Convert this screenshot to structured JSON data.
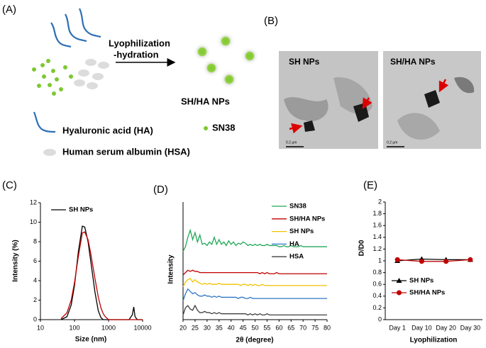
{
  "panels": {
    "labels": [
      "(A)",
      "(B)",
      "(C)",
      "(D)",
      "(E)"
    ]
  },
  "scheme": {
    "step_line1": "Lyophilization",
    "step_line2": "-hydration",
    "product": "SH/HA NPs",
    "sn38": "SN38",
    "ha": "Hyaluronic acid (HA)",
    "hsa": "Human serum albumin (HSA)"
  },
  "tem": {
    "left_label": "SH NPs",
    "right_label": "SH/HA NPs",
    "left_scale": "0.2 μm",
    "right_scale": "0.2 μm"
  },
  "chart_data": [
    {
      "type": "line",
      "x_label": "Size (nm)",
      "y_label": "Intensity (%)",
      "xscale": "log",
      "x": [
        40,
        60,
        80,
        100,
        130,
        170,
        200,
        250,
        300,
        400,
        500,
        600,
        700,
        800,
        1000,
        3000,
        4000,
        5000,
        5500,
        6000,
        7000,
        10000
      ],
      "series": [
        {
          "name": "SH NPs",
          "color": "#000000",
          "values": [
            0,
            0.3,
            1.5,
            3.5,
            7,
            9.6,
            9.5,
            8,
            6,
            2.8,
            0.9,
            0.2,
            0,
            0,
            0,
            0,
            0,
            0.5,
            1.3,
            0.3,
            0,
            0
          ]
        },
        {
          "color": "#c00000",
          "values": [
            0.1,
            0.7,
            2,
            3.8,
            6.5,
            8.9,
            9,
            8.2,
            6.8,
            4.2,
            2.3,
            1.2,
            0.6,
            0.3,
            0,
            0,
            0,
            0,
            0,
            0,
            0,
            0
          ]
        }
      ],
      "xlim": [
        10,
        10000
      ],
      "xticks": [
        10,
        100,
        1000,
        10000
      ],
      "ylim": [
        0,
        12
      ],
      "yticks": [
        0,
        2,
        4,
        6,
        8,
        10,
        12
      ]
    },
    {
      "type": "line",
      "x_label": "2θ (degree)",
      "y_label": "Intensity",
      "x": [
        20,
        21,
        22,
        23,
        24,
        25,
        26,
        27,
        28,
        29,
        30,
        31,
        32,
        33,
        34,
        35,
        36,
        37,
        38,
        39,
        40,
        41,
        42,
        43,
        44,
        45,
        46,
        47,
        48,
        49,
        50,
        51,
        52,
        53,
        54,
        55,
        56,
        57,
        58,
        59,
        60,
        61,
        62,
        63,
        64,
        65,
        66,
        67,
        68,
        69,
        70,
        71,
        72,
        73,
        74,
        75,
        76,
        77,
        78,
        79,
        80
      ],
      "series": [
        {
          "name": "SN38",
          "color": "#22a858",
          "values": [
            58,
            62,
            70,
            76,
            68,
            74,
            66,
            72,
            64,
            65,
            63,
            66,
            64,
            70,
            64,
            68,
            64,
            66,
            63,
            67,
            64,
            66,
            63,
            65,
            64,
            66,
            65,
            63,
            64,
            63,
            64,
            63,
            64,
            63,
            63,
            64,
            63,
            63,
            63,
            63,
            62,
            62,
            63,
            62,
            62,
            63,
            62,
            62,
            62,
            63,
            62,
            62,
            62,
            62,
            62,
            62,
            62,
            62,
            62,
            62,
            62
          ]
        },
        {
          "name": "SH/HA NPs",
          "color": "#c00000",
          "values": [
            38,
            40,
            42,
            41,
            42,
            41,
            41,
            40,
            40,
            40,
            40,
            40,
            40,
            40,
            40,
            40,
            40,
            40,
            40,
            40,
            40,
            40,
            40,
            40,
            40,
            40,
            40,
            40,
            40,
            40,
            40,
            40,
            39,
            40,
            39,
            40,
            39,
            39,
            39,
            40,
            39,
            39,
            39,
            39,
            39,
            39,
            39,
            39,
            39,
            39,
            39,
            39,
            39,
            39,
            39,
            39,
            39,
            39,
            39,
            39,
            39
          ]
        },
        {
          "name": "SH NPs",
          "color": "#f2c200",
          "values": [
            28,
            32,
            34,
            35,
            32,
            34,
            32,
            31,
            30,
            31,
            30,
            31,
            30,
            30,
            30,
            31,
            30,
            30,
            30,
            30,
            30,
            30,
            30,
            30,
            29,
            30,
            30,
            29,
            30,
            29,
            30,
            29,
            29,
            30,
            29,
            29,
            29,
            29,
            29,
            29,
            29,
            29,
            29,
            29,
            29,
            29,
            29,
            29,
            29,
            29,
            29,
            29,
            29,
            29,
            29,
            29,
            29,
            29,
            29,
            29,
            29
          ]
        },
        {
          "name": "HA",
          "color": "#2e75c6",
          "values": [
            16,
            22,
            26,
            24,
            22,
            23,
            21,
            20,
            20,
            21,
            20,
            20,
            19,
            20,
            19,
            20,
            19,
            19,
            19,
            19,
            19,
            19,
            19,
            18,
            19,
            19,
            18,
            18,
            19,
            18,
            18,
            18,
            18,
            18,
            18,
            18,
            18,
            18,
            18,
            18,
            18,
            18,
            18,
            18,
            18,
            18,
            18,
            18,
            18,
            18,
            18,
            18,
            18,
            18,
            18,
            18,
            18,
            18,
            18,
            18,
            18
          ]
        },
        {
          "name": "HSA",
          "color": "#404040",
          "values": [
            4,
            10,
            12,
            9,
            8,
            12,
            8,
            6,
            6,
            7,
            6,
            6,
            5,
            6,
            5,
            6,
            5,
            5,
            5,
            5,
            5,
            5,
            5,
            5,
            5,
            5,
            5,
            4,
            5,
            4,
            5,
            4,
            5,
            4,
            4,
            5,
            4,
            4,
            4,
            4,
            4,
            4,
            4,
            4,
            4,
            4,
            4,
            4,
            4,
            4,
            4,
            4,
            4,
            4,
            4,
            4,
            4,
            4,
            4,
            4,
            4
          ]
        }
      ],
      "xlim": [
        20,
        80
      ],
      "xticks": [
        20,
        25,
        30,
        35,
        40,
        45,
        50,
        55,
        60,
        65,
        70,
        75,
        80
      ],
      "ylim": [
        0,
        100
      ]
    },
    {
      "type": "line",
      "x_label": "Lyophilization",
      "y_label": "D/D0",
      "categories": [
        "Day 1",
        "Day 10",
        "Day 20",
        "Day 30"
      ],
      "series": [
        {
          "name": "SH NPs",
          "color": "#000000",
          "marker": "triangle",
          "values": [
            1.0,
            1.03,
            1.02,
            1.02
          ]
        },
        {
          "name": "SH/HA NPs",
          "color": "#c00000",
          "marker": "circle",
          "values": [
            1.02,
            0.99,
            0.99,
            1.02
          ]
        }
      ],
      "ylim": [
        0,
        2
      ],
      "yticks": [
        0,
        0.2,
        0.4,
        0.6,
        0.8,
        1,
        1.2,
        1.4,
        1.6,
        1.8,
        2
      ]
    }
  ]
}
